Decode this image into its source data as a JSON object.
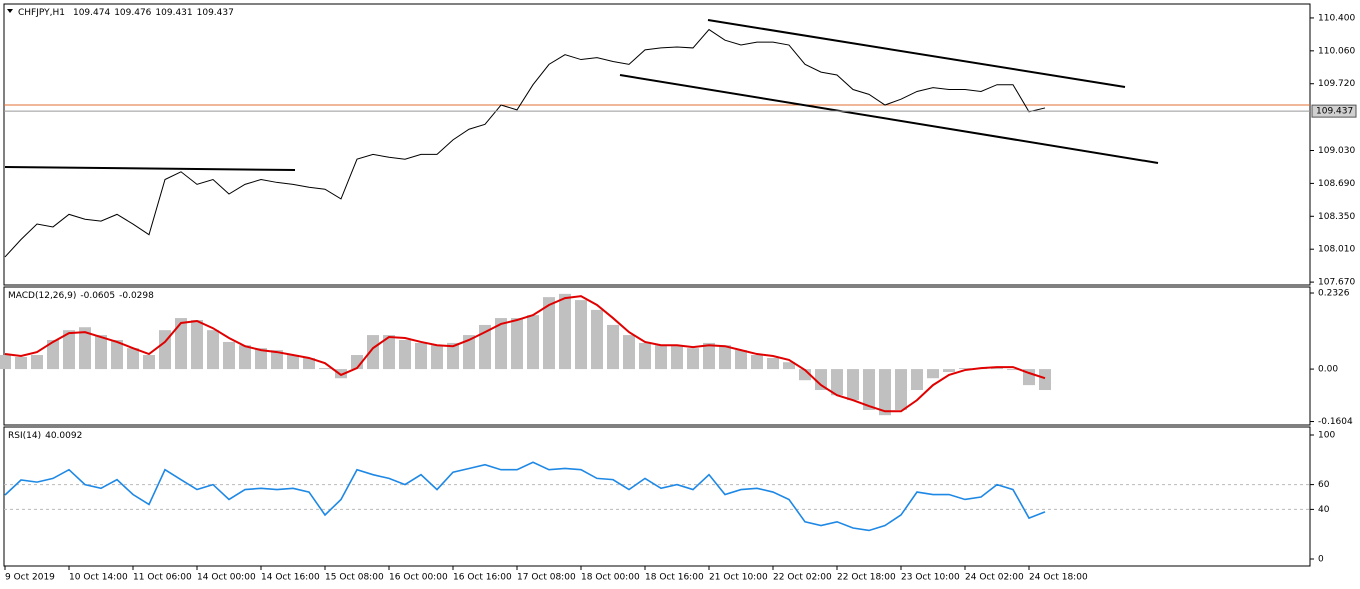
{
  "chart_data": [
    {
      "type": "line",
      "title": "CHFJPY,H1",
      "header_values": [
        109.474,
        109.476,
        109.431,
        109.437
      ],
      "color": "#000000",
      "values": [
        107.93,
        108.11,
        108.27,
        108.24,
        108.37,
        108.32,
        108.3,
        108.37,
        108.27,
        108.16,
        108.73,
        108.81,
        108.68,
        108.73,
        108.58,
        108.68,
        108.73,
        108.7,
        108.68,
        108.65,
        108.63,
        108.53,
        108.94,
        108.99,
        108.96,
        108.94,
        108.99,
        108.99,
        109.14,
        109.25,
        109.3,
        109.5,
        109.45,
        109.71,
        109.92,
        110.02,
        109.97,
        109.99,
        109.95,
        109.92,
        110.07,
        110.09,
        110.1,
        110.09,
        110.28,
        110.17,
        110.12,
        110.15,
        110.15,
        110.12,
        109.92,
        109.84,
        109.81,
        109.66,
        109.61,
        109.5,
        109.56,
        109.64,
        109.68,
        109.66,
        109.66,
        109.64,
        109.71,
        109.71,
        109.43,
        109.47
      ],
      "last_price": 109.437,
      "ylim": [
        107.64,
        110.544
      ],
      "yticks": [
        {
          "value": 110.4,
          "label": "110.400"
        },
        {
          "value": 110.06,
          "label": "110.060"
        },
        {
          "value": 109.72,
          "label": "109.720"
        },
        {
          "value": 109.03,
          "label": "109.030"
        },
        {
          "value": 108.69,
          "label": "108.690"
        },
        {
          "value": 108.35,
          "label": "108.350"
        },
        {
          "value": 108.01,
          "label": "108.010"
        },
        {
          "value": 107.67,
          "label": "107.670"
        }
      ]
    },
    {
      "type": "macd",
      "title": "MACD(12,26,9)",
      "header_values": [
        -0.0605,
        -0.0298
      ],
      "series": [
        {
          "color": "#c0c0c0",
          "values": [
            0.043,
            0.037,
            0.043,
            0.089,
            0.119,
            0.128,
            0.104,
            0.089,
            0.064,
            0.043,
            0.119,
            0.156,
            0.15,
            0.119,
            0.083,
            0.073,
            0.064,
            0.058,
            0.043,
            0.034,
            0.003,
            -0.028,
            0.043,
            0.104,
            0.104,
            0.089,
            0.08,
            0.073,
            0.08,
            0.104,
            0.135,
            0.156,
            0.156,
            0.165,
            0.22,
            0.23,
            0.211,
            0.181,
            0.135,
            0.104,
            0.08,
            0.073,
            0.073,
            0.064,
            0.08,
            0.073,
            0.058,
            0.043,
            0.034,
            0.021,
            -0.034,
            -0.064,
            -0.08,
            -0.095,
            -0.125,
            -0.141,
            -0.125,
            -0.064,
            -0.028,
            -0.009,
            0.003,
            0.003,
            0.003,
            -0.003,
            -0.049,
            -0.064
          ]
        },
        {
          "color": "#e00000",
          "values": [
            0.046,
            0.04,
            0.052,
            0.083,
            0.11,
            0.113,
            0.098,
            0.083,
            0.064,
            0.046,
            0.083,
            0.141,
            0.147,
            0.125,
            0.095,
            0.07,
            0.058,
            0.052,
            0.043,
            0.034,
            0.018,
            -0.018,
            0.003,
            0.064,
            0.098,
            0.095,
            0.083,
            0.073,
            0.07,
            0.089,
            0.113,
            0.138,
            0.15,
            0.165,
            0.196,
            0.217,
            0.223,
            0.196,
            0.156,
            0.113,
            0.083,
            0.073,
            0.073,
            0.067,
            0.073,
            0.07,
            0.058,
            0.046,
            0.04,
            0.028,
            -0.003,
            -0.049,
            -0.08,
            -0.095,
            -0.113,
            -0.129,
            -0.129,
            -0.095,
            -0.049,
            -0.018,
            -0.003,
            0.003,
            0.006,
            0.006,
            -0.012,
            -0.028
          ]
        }
      ],
      "ylim": [
        -0.171,
        0.251
      ],
      "yticks": [
        0.2326,
        {
          "value": 0,
          "label": "0.00"
        },
        -0.1604
      ]
    },
    {
      "type": "line",
      "title": "RSI(14)",
      "header_values": [
        40.0092
      ],
      "color": "#1e88e5",
      "values": [
        51.6,
        63.7,
        62,
        65,
        72,
        60,
        57,
        64,
        52,
        44,
        72,
        64,
        56,
        60,
        48,
        56,
        57,
        56,
        57,
        54,
        35.5,
        48,
        72,
        68,
        65,
        60,
        68,
        56,
        70,
        73,
        76,
        72,
        72,
        78,
        72,
        73,
        72,
        65,
        64,
        56,
        65,
        57,
        60,
        56,
        68,
        52,
        56,
        57,
        54,
        48,
        30,
        27,
        30,
        25,
        23,
        27,
        35.5,
        54,
        52,
        52,
        48,
        50,
        60,
        56,
        33,
        38
      ],
      "levels": [
        60,
        40
      ],
      "ylim": [
        -5.65,
        106.45
      ],
      "yticks": [
        100,
        60,
        40,
        0
      ],
      "categories": [
        "9 Oct 2019",
        null,
        null,
        null,
        "10 Oct 14:00",
        null,
        null,
        null,
        "11 Oct 06:00",
        null,
        null,
        null,
        "14 Oct 00:00",
        null,
        null,
        null,
        "14 Oct 16:00",
        null,
        null,
        null,
        "15 Oct 08:00",
        null,
        null,
        null,
        "16 Oct 00:00",
        null,
        null,
        null,
        "16 Oct 16:00",
        null,
        null,
        null,
        "17 Oct 08:00",
        null,
        null,
        null,
        "18 Oct 00:00",
        null,
        null,
        null,
        "18 Oct 16:00",
        null,
        null,
        null,
        "21 Oct 10:00",
        null,
        null,
        null,
        "22 Oct 02:00",
        null,
        null,
        null,
        "22 Oct 18:00",
        null,
        null,
        null,
        "23 Oct 10:00",
        null,
        null,
        null,
        "24 Oct 02:00",
        null,
        null,
        null,
        "24 Oct 18:00",
        null
      ]
    }
  ]
}
